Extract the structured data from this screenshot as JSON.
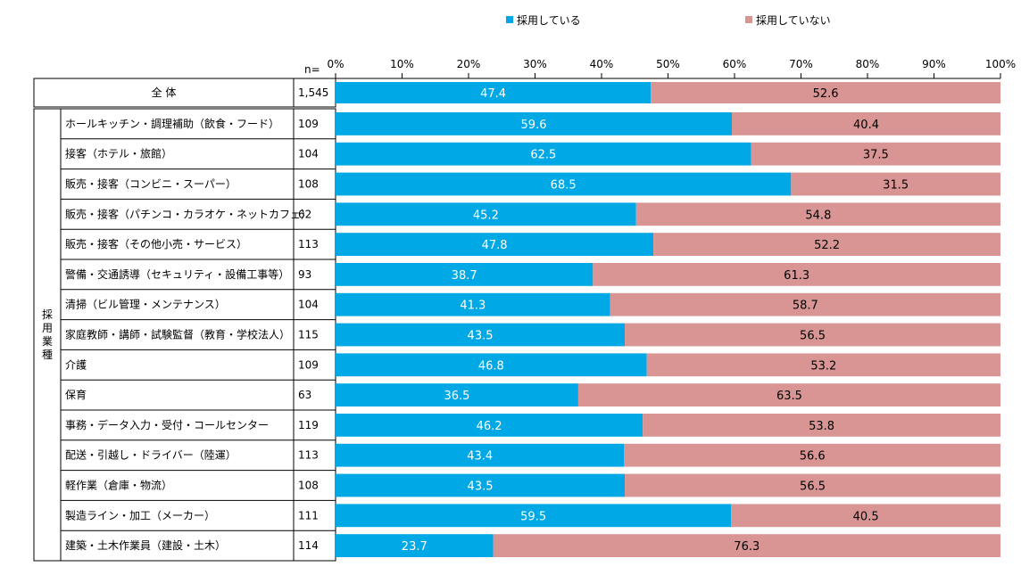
{
  "chart_data": {
    "type": "bar",
    "orientation": "horizontal",
    "stacked": "percent",
    "n_header": "n=",
    "group_label": "採用業種",
    "legend": {
      "position": "top-center"
    },
    "xlim": [
      0,
      100
    ],
    "x_ticks": [
      "0%",
      "10%",
      "20%",
      "30%",
      "40%",
      "50%",
      "60%",
      "70%",
      "80%",
      "90%",
      "100%"
    ],
    "series": [
      {
        "name": "採用している",
        "color": "#00a8e6",
        "values": [
          47.4,
          59.6,
          62.5,
          68.5,
          45.2,
          47.8,
          38.7,
          41.3,
          43.5,
          46.8,
          36.5,
          46.2,
          43.4,
          43.5,
          59.5,
          23.7
        ]
      },
      {
        "name": "採用していない",
        "color": "#d99594",
        "values": [
          52.6,
          40.4,
          37.5,
          31.5,
          54.8,
          52.2,
          61.3,
          58.7,
          56.5,
          53.2,
          63.5,
          53.8,
          56.6,
          56.5,
          40.5,
          76.3
        ]
      }
    ],
    "categories": [
      "全 体",
      "ホールキッチン・調理補助（飲食・フード）",
      "接客（ホテル・旅館）",
      "販売・接客（コンビニ・スーパー）",
      "販売・接客（パチンコ・カラオケ・ネットカフェ）",
      "販売・接客（その他小売・サービス）",
      "警備・交通誘導（セキュリティ・設備工事等）",
      "清掃（ビル管理・メンテナンス）",
      "家庭教師・講師・試験監督（教育・学校法人）",
      "介護",
      "保育",
      "事務・データ入力・受付・コールセンター",
      "配送・引越し・ドライバー（陸運）",
      "軽作業（倉庫・物流）",
      "製造ライン・加工（メーカー）",
      "建築・土木作業員（建設・土木）"
    ],
    "n": [
      "1,545",
      "109",
      "104",
      "108",
      "62",
      "113",
      "93",
      "104",
      "115",
      "109",
      "63",
      "119",
      "113",
      "108",
      "111",
      "114"
    ]
  }
}
